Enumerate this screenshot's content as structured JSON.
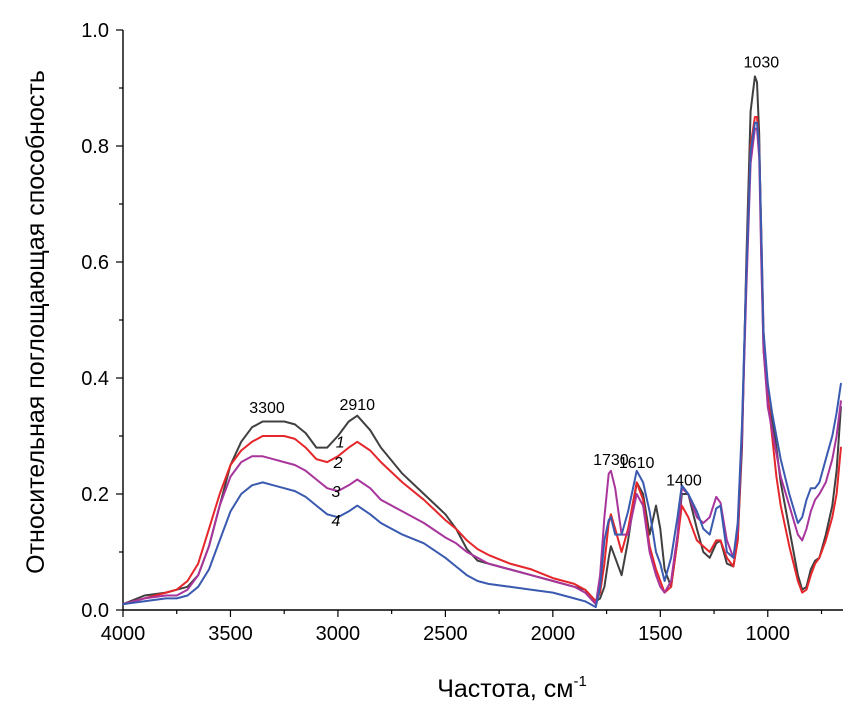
{
  "chart_data": {
    "type": "line",
    "title": "",
    "xlabel": "Частота, см",
    "xlabel_superscript": "-1",
    "ylabel": "Относительная поглощающая способность",
    "xlim": [
      4000,
      650
    ],
    "ylim": [
      0,
      1.0
    ],
    "x_ticks": [
      4000,
      3500,
      3000,
      2500,
      2000,
      1500,
      1000
    ],
    "x_tick_labels": [
      "4000",
      "3500",
      "3000",
      "2500",
      "2000",
      "1500",
      "1000"
    ],
    "y_ticks": [
      0,
      0.2,
      0.4,
      0.6,
      0.8,
      1.0
    ],
    "y_tick_labels": [
      "0.0",
      "0.2",
      "0.4",
      "0.6",
      "0.8",
      "1.0"
    ],
    "peak_annotations": [
      {
        "text": "3300",
        "x": 3330,
        "y": 0.34
      },
      {
        "text": "2910",
        "x": 2910,
        "y": 0.345
      },
      {
        "text": "1730",
        "x": 1730,
        "y": 0.25
      },
      {
        "text": "1610",
        "x": 1610,
        "y": 0.245
      },
      {
        "text": "1400",
        "x": 1390,
        "y": 0.215
      },
      {
        "text": "1030",
        "x": 1030,
        "y": 0.935
      }
    ],
    "curve_labels": [
      {
        "text": "1",
        "x": 3010,
        "y": 0.28
      },
      {
        "text": "2",
        "x": 3020,
        "y": 0.245
      },
      {
        "text": "3",
        "x": 3030,
        "y": 0.195
      },
      {
        "text": "4",
        "x": 3030,
        "y": 0.145
      }
    ],
    "series": [
      {
        "name": "1",
        "color": "#404040",
        "x": [
          4000,
          3900,
          3800,
          3750,
          3700,
          3650,
          3600,
          3550,
          3500,
          3450,
          3400,
          3350,
          3300,
          3250,
          3200,
          3150,
          3100,
          3050,
          3000,
          2950,
          2910,
          2850,
          2800,
          2700,
          2600,
          2500,
          2450,
          2400,
          2350,
          2300,
          2200,
          2100,
          2000,
          1900,
          1850,
          1800,
          1780,
          1760,
          1740,
          1730,
          1710,
          1680,
          1650,
          1610,
          1580,
          1550,
          1520,
          1500,
          1480,
          1450,
          1420,
          1400,
          1370,
          1330,
          1300,
          1270,
          1240,
          1220,
          1190,
          1160,
          1140,
          1120,
          1100,
          1080,
          1060,
          1050,
          1040,
          1030,
          1020,
          1000,
          980,
          960,
          940,
          900,
          860,
          840,
          820,
          800,
          780,
          760,
          730,
          700,
          680,
          660
        ],
        "y": [
          0.01,
          0.025,
          0.03,
          0.035,
          0.04,
          0.06,
          0.11,
          0.18,
          0.25,
          0.29,
          0.315,
          0.325,
          0.325,
          0.325,
          0.32,
          0.305,
          0.28,
          0.28,
          0.3,
          0.325,
          0.335,
          0.31,
          0.28,
          0.235,
          0.2,
          0.165,
          0.14,
          0.105,
          0.085,
          0.08,
          0.07,
          0.06,
          0.05,
          0.04,
          0.035,
          0.015,
          0.02,
          0.04,
          0.09,
          0.11,
          0.09,
          0.06,
          0.12,
          0.22,
          0.2,
          0.13,
          0.18,
          0.14,
          0.07,
          0.04,
          0.12,
          0.2,
          0.2,
          0.14,
          0.1,
          0.09,
          0.115,
          0.12,
          0.08,
          0.075,
          0.12,
          0.28,
          0.6,
          0.86,
          0.92,
          0.91,
          0.82,
          0.62,
          0.45,
          0.36,
          0.33,
          0.28,
          0.22,
          0.14,
          0.06,
          0.035,
          0.04,
          0.07,
          0.085,
          0.09,
          0.13,
          0.18,
          0.24,
          0.35
        ]
      },
      {
        "name": "2",
        "color": "#e5262a",
        "x": [
          4000,
          3900,
          3800,
          3750,
          3700,
          3650,
          3600,
          3550,
          3500,
          3450,
          3400,
          3350,
          3300,
          3250,
          3200,
          3150,
          3100,
          3050,
          3000,
          2950,
          2910,
          2850,
          2800,
          2700,
          2600,
          2500,
          2450,
          2400,
          2350,
          2300,
          2200,
          2100,
          2000,
          1900,
          1850,
          1800,
          1780,
          1760,
          1740,
          1730,
          1710,
          1680,
          1650,
          1610,
          1580,
          1550,
          1520,
          1500,
          1480,
          1450,
          1420,
          1400,
          1370,
          1330,
          1300,
          1270,
          1240,
          1220,
          1190,
          1160,
          1140,
          1120,
          1100,
          1080,
          1060,
          1050,
          1040,
          1030,
          1020,
          1000,
          980,
          960,
          940,
          900,
          860,
          840,
          820,
          800,
          780,
          760,
          730,
          700,
          680,
          660
        ],
        "y": [
          0.01,
          0.02,
          0.03,
          0.035,
          0.05,
          0.08,
          0.14,
          0.2,
          0.25,
          0.275,
          0.29,
          0.3,
          0.3,
          0.3,
          0.295,
          0.28,
          0.26,
          0.255,
          0.265,
          0.28,
          0.29,
          0.275,
          0.255,
          0.22,
          0.19,
          0.155,
          0.14,
          0.12,
          0.105,
          0.095,
          0.08,
          0.07,
          0.055,
          0.045,
          0.035,
          0.015,
          0.03,
          0.08,
          0.15,
          0.165,
          0.14,
          0.1,
          0.14,
          0.22,
          0.19,
          0.11,
          0.07,
          0.05,
          0.03,
          0.04,
          0.12,
          0.18,
          0.16,
          0.12,
          0.11,
          0.1,
          0.12,
          0.12,
          0.09,
          0.075,
          0.12,
          0.3,
          0.58,
          0.8,
          0.85,
          0.85,
          0.8,
          0.65,
          0.48,
          0.37,
          0.3,
          0.23,
          0.18,
          0.11,
          0.05,
          0.03,
          0.035,
          0.06,
          0.08,
          0.09,
          0.12,
          0.16,
          0.2,
          0.28
        ]
      },
      {
        "name": "3",
        "color": "#a8359c",
        "x": [
          4000,
          3900,
          3800,
          3750,
          3700,
          3650,
          3600,
          3550,
          3500,
          3450,
          3400,
          3350,
          3300,
          3250,
          3200,
          3150,
          3100,
          3050,
          3000,
          2950,
          2910,
          2850,
          2800,
          2700,
          2600,
          2500,
          2450,
          2400,
          2350,
          2300,
          2200,
          2100,
          2000,
          1900,
          1850,
          1800,
          1780,
          1760,
          1740,
          1730,
          1710,
          1680,
          1650,
          1610,
          1580,
          1550,
          1520,
          1500,
          1480,
          1450,
          1420,
          1400,
          1370,
          1330,
          1300,
          1270,
          1240,
          1220,
          1190,
          1160,
          1140,
          1120,
          1100,
          1080,
          1060,
          1050,
          1040,
          1030,
          1020,
          1000,
          980,
          960,
          940,
          900,
          860,
          840,
          820,
          800,
          780,
          760,
          730,
          700,
          680,
          660
        ],
        "y": [
          0.01,
          0.02,
          0.025,
          0.025,
          0.035,
          0.06,
          0.11,
          0.18,
          0.23,
          0.255,
          0.265,
          0.265,
          0.26,
          0.255,
          0.25,
          0.24,
          0.225,
          0.21,
          0.205,
          0.215,
          0.225,
          0.21,
          0.19,
          0.17,
          0.15,
          0.125,
          0.115,
          0.1,
          0.09,
          0.08,
          0.07,
          0.06,
          0.05,
          0.04,
          0.03,
          0.01,
          0.06,
          0.16,
          0.235,
          0.24,
          0.21,
          0.13,
          0.13,
          0.2,
          0.18,
          0.1,
          0.06,
          0.04,
          0.03,
          0.05,
          0.13,
          0.21,
          0.2,
          0.16,
          0.15,
          0.16,
          0.195,
          0.185,
          0.12,
          0.09,
          0.14,
          0.3,
          0.55,
          0.77,
          0.83,
          0.83,
          0.78,
          0.6,
          0.45,
          0.35,
          0.31,
          0.27,
          0.23,
          0.18,
          0.13,
          0.12,
          0.14,
          0.17,
          0.19,
          0.2,
          0.22,
          0.26,
          0.3,
          0.36
        ]
      },
      {
        "name": "4",
        "color": "#3a5ab0",
        "x": [
          4000,
          3900,
          3800,
          3750,
          3700,
          3650,
          3600,
          3550,
          3500,
          3450,
          3400,
          3350,
          3300,
          3250,
          3200,
          3150,
          3100,
          3050,
          3000,
          2950,
          2910,
          2850,
          2800,
          2700,
          2600,
          2500,
          2450,
          2400,
          2350,
          2300,
          2200,
          2100,
          2000,
          1900,
          1850,
          1800,
          1780,
          1760,
          1740,
          1730,
          1710,
          1680,
          1650,
          1610,
          1580,
          1550,
          1520,
          1500,
          1480,
          1450,
          1420,
          1400,
          1370,
          1330,
          1300,
          1270,
          1240,
          1220,
          1190,
          1160,
          1140,
          1120,
          1100,
          1080,
          1060,
          1050,
          1040,
          1030,
          1020,
          1000,
          980,
          960,
          940,
          900,
          860,
          840,
          820,
          800,
          780,
          760,
          730,
          700,
          680,
          660
        ],
        "y": [
          0.01,
          0.015,
          0.02,
          0.02,
          0.025,
          0.04,
          0.07,
          0.12,
          0.17,
          0.2,
          0.215,
          0.22,
          0.215,
          0.21,
          0.205,
          0.195,
          0.18,
          0.165,
          0.16,
          0.17,
          0.18,
          0.165,
          0.15,
          0.13,
          0.115,
          0.09,
          0.075,
          0.06,
          0.05,
          0.045,
          0.04,
          0.035,
          0.03,
          0.02,
          0.015,
          0.005,
          0.04,
          0.12,
          0.155,
          0.16,
          0.13,
          0.13,
          0.17,
          0.24,
          0.22,
          0.17,
          0.1,
          0.08,
          0.05,
          0.09,
          0.16,
          0.215,
          0.2,
          0.17,
          0.14,
          0.13,
          0.175,
          0.18,
          0.1,
          0.09,
          0.15,
          0.32,
          0.58,
          0.79,
          0.84,
          0.84,
          0.8,
          0.65,
          0.48,
          0.39,
          0.34,
          0.3,
          0.26,
          0.2,
          0.15,
          0.16,
          0.19,
          0.21,
          0.21,
          0.22,
          0.26,
          0.3,
          0.34,
          0.39
        ]
      }
    ]
  }
}
